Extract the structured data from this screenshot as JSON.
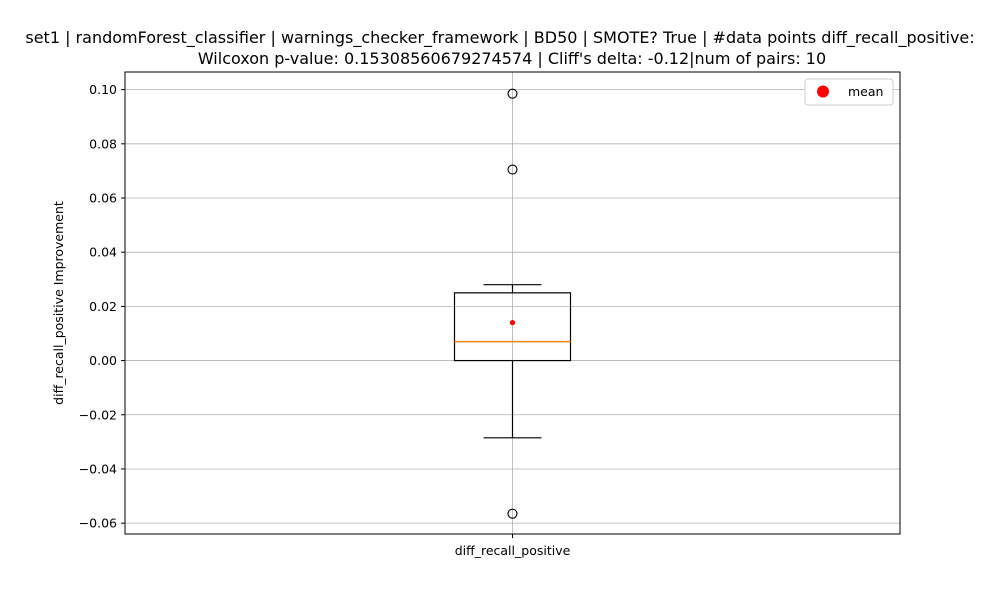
{
  "chart_data": {
    "type": "box",
    "title_line1": "set1 | randomForest_classifier | warnings_checker_framework | BD50 | SMOTE? True | #data points diff_recall_positive:",
    "title_line2": "Wilcoxon p-value: 0.15308560679274574 | Cliff's delta: -0.12|num of pairs: 10",
    "xlabel": "diff_recall_positive",
    "ylabel": "diff_recall_positive Improvement",
    "categories": [
      "diff_recall_positive"
    ],
    "ylim": [
      -0.064,
      0.1065
    ],
    "yticks": [
      -0.06,
      -0.04,
      -0.02,
      0.0,
      0.02,
      0.04,
      0.06,
      0.08,
      0.1
    ],
    "ytick_labels": [
      "−0.06",
      "−0.04",
      "−0.02",
      "0.00",
      "0.02",
      "0.04",
      "0.06",
      "0.08",
      "0.10"
    ],
    "grid": true,
    "legend": {
      "position": "top-right",
      "entries": [
        "mean"
      ]
    },
    "box": {
      "whisker_low": -0.0285,
      "q1": 0.0,
      "median": 0.007,
      "q3": 0.025,
      "whisker_high": 0.028,
      "mean": 0.014,
      "outliers": [
        0.0985,
        0.0705,
        -0.0565
      ]
    },
    "colors": {
      "box": "#000000",
      "median": "#ff7f0e",
      "mean": "#ff0000",
      "grid": "#b0b0b0"
    }
  }
}
